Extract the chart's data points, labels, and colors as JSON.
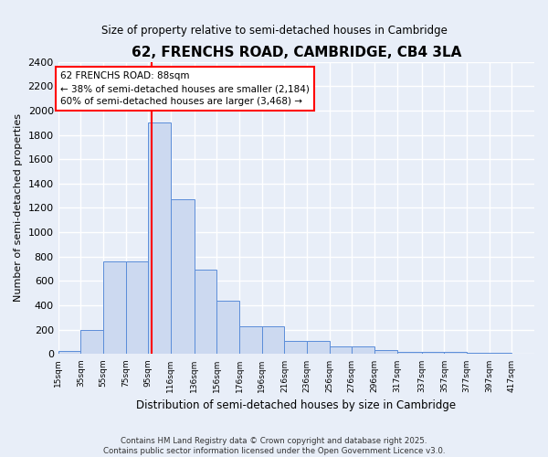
{
  "title": "62, FRENCHS ROAD, CAMBRIDGE, CB4 3LA",
  "subtitle": "Size of property relative to semi-detached houses in Cambridge",
  "xlabel": "Distribution of semi-detached houses by size in Cambridge",
  "ylabel": "Number of semi-detached properties",
  "categories": [
    "15sqm",
    "35sqm",
    "55sqm",
    "75sqm",
    "95sqm",
    "116sqm",
    "136sqm",
    "156sqm",
    "176sqm",
    "196sqm",
    "216sqm",
    "236sqm",
    "256sqm",
    "276sqm",
    "296sqm",
    "317sqm",
    "337sqm",
    "357sqm",
    "377sqm",
    "397sqm",
    "417sqm"
  ],
  "bar_heights": [
    25,
    200,
    760,
    760,
    1900,
    1270,
    690,
    435,
    230,
    230,
    105,
    105,
    60,
    60,
    35,
    20,
    20,
    15,
    10,
    10,
    0
  ],
  "bar_color": "#ccd9f0",
  "bar_edge_color": "#5b8dd9",
  "background_color": "#e8eef8",
  "grid_color": "#ffffff",
  "property_line_x": 88,
  "property_line_color": "red",
  "annotation_text": "62 FRENCHS ROAD: 88sqm\n← 38% of semi-detached houses are smaller (2,184)\n60% of semi-detached houses are larger (3,468) →",
  "annotation_box_color": "white",
  "annotation_box_edge_color": "red",
  "ylim": [
    0,
    2400
  ],
  "yticks": [
    0,
    200,
    400,
    600,
    800,
    1000,
    1200,
    1400,
    1600,
    1800,
    2000,
    2200,
    2400
  ],
  "footer": "Contains HM Land Registry data © Crown copyright and database right 2025.\nContains public sector information licensed under the Open Government Licence v3.0.",
  "bin_edges": [
    5,
    25,
    45,
    65,
    85,
    105,
    126,
    146,
    166,
    186,
    206,
    226,
    246,
    266,
    286,
    306,
    328,
    348,
    368,
    388,
    408,
    428
  ]
}
